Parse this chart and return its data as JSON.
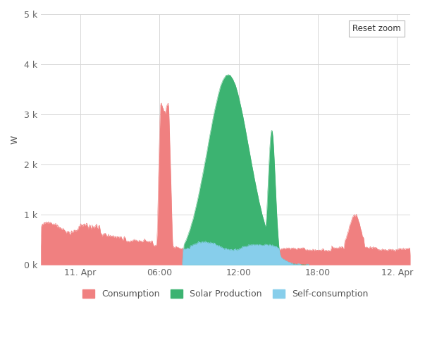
{
  "ylabel": "W",
  "ylim": [
    0,
    5000
  ],
  "yticks": [
    0,
    1000,
    2000,
    3000,
    4000,
    5000
  ],
  "ytick_labels": [
    "0 k",
    "1 k",
    "2 k",
    "3 k",
    "4 k",
    "5 k"
  ],
  "xtick_labels": [
    "11. Apr",
    "06:00",
    "12:00",
    "18:00",
    "12. Apr"
  ],
  "consumption_color": "#f08080",
  "solar_color": "#3cb371",
  "self_color": "#87ceeb",
  "background_color": "#ffffff",
  "grid_color": "#d8d8d8",
  "legend_items": [
    "Consumption",
    "Solar Production",
    "Self-consumption"
  ],
  "legend_colors": [
    "#f08080",
    "#3cb371",
    "#87ceeb"
  ],
  "reset_zoom_text": "Reset zoom",
  "figsize": [
    6.03,
    4.93
  ],
  "dpi": 100
}
